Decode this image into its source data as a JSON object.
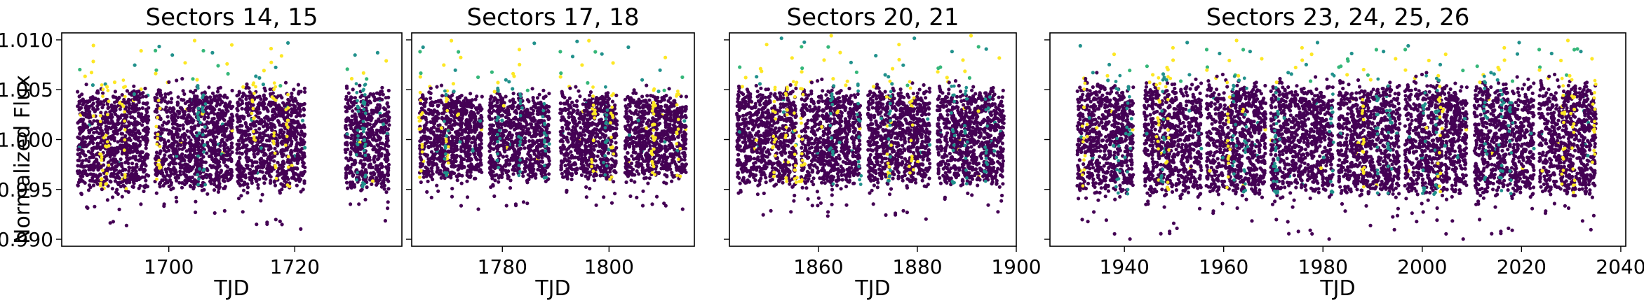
{
  "figure": {
    "ylabel": "Normalized Flux",
    "xlabel": "TJD"
  },
  "colors": {
    "base": "#440154",
    "mid": "#21918c",
    "teal": "#35b779",
    "high": "#fde725"
  },
  "chart_data": [
    {
      "type": "scatter",
      "title": "Sectors 14, 15",
      "xlabel": "TJD",
      "ylabel": "Normalized Flux",
      "xlim": [
        1683,
        1737
      ],
      "ylim": [
        0.9893,
        1.0107
      ],
      "xticks": [
        1700,
        1720
      ],
      "yticks": [
        0.99,
        0.995,
        1.0,
        1.005,
        1.01
      ],
      "ytick_labels": [
        "0.990",
        "0.995",
        "1.000",
        "1.005",
        "1.010"
      ],
      "segments": [
        [
          1685.5,
          1696.8
        ],
        [
          1697.8,
          1710.2
        ],
        [
          1710.8,
          1721.6
        ],
        [
          1728.0,
          1735.0
        ]
      ],
      "noise": {
        "lo": 0.995,
        "hi": 1.005,
        "min": 0.991,
        "max": 1.01
      }
    },
    {
      "type": "scatter",
      "title": "Sectors 17, 18",
      "xlabel": "TJD",
      "ylabel": "",
      "xlim": [
        1763,
        1816
      ],
      "ylim": [
        0.9893,
        1.0107
      ],
      "xticks": [
        1780,
        1800
      ],
      "yticks": [
        0.99,
        0.995,
        1.0,
        1.005,
        1.01
      ],
      "ytick_labels": [
        "",
        "",
        "",
        "",
        ""
      ],
      "segments": [
        [
          1764.5,
          1776.2
        ],
        [
          1777.5,
          1788.8
        ],
        [
          1790.8,
          1801.5
        ],
        [
          1803.0,
          1814.5
        ]
      ],
      "noise": {
        "lo": 0.996,
        "hi": 1.0045,
        "min": 0.993,
        "max": 1.01
      }
    },
    {
      "type": "scatter",
      "title": "Sectors 20, 21",
      "xlabel": "TJD",
      "ylabel": "",
      "xlim": [
        1842,
        1900
      ],
      "ylim": [
        0.9893,
        1.0107
      ],
      "xticks": [
        1840,
        1860,
        1880,
        1900
      ],
      "yticks": [
        0.99,
        0.995,
        1.0,
        1.005,
        1.01
      ],
      "ytick_labels": [
        "",
        "",
        "",
        "",
        ""
      ],
      "segments": [
        [
          1843.5,
          1855.5
        ],
        [
          1856.5,
          1868.5
        ],
        [
          1870.0,
          1882.5
        ],
        [
          1884.0,
          1897.5
        ]
      ],
      "noise": {
        "lo": 0.9955,
        "hi": 1.005,
        "min": 0.992,
        "max": 1.0105
      }
    },
    {
      "type": "scatter",
      "title": "Sectors 23, 24, 25, 26",
      "xlabel": "TJD",
      "ylabel": "",
      "xlim": [
        1925,
        2041
      ],
      "ylim": [
        0.9893,
        1.0107
      ],
      "xticks": [
        1940,
        1960,
        1980,
        2000,
        2020,
        2040
      ],
      "yticks": [
        0.99,
        0.995,
        1.0,
        1.005,
        1.01
      ],
      "ytick_labels": [
        "",
        "",
        "",
        "",
        ""
      ],
      "segments": [
        [
          1930.5,
          1941.8
        ],
        [
          1944.0,
          1955.5
        ],
        [
          1956.5,
          1968.5
        ],
        [
          1969.5,
          1982.0
        ],
        [
          1983.0,
          1995.5
        ],
        [
          1996.5,
          2009.0
        ],
        [
          2010.5,
          2022.5
        ],
        [
          2023.5,
          2035.0
        ]
      ],
      "noise": {
        "lo": 0.9945,
        "hi": 1.0055,
        "min": 0.99,
        "max": 1.01
      }
    }
  ]
}
